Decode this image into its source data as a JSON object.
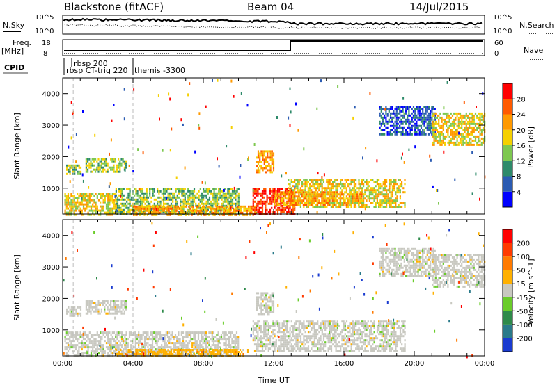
{
  "header": {
    "station": "Blackstone (fitACF)",
    "beam": "Beam 04",
    "date": "14/Jul/2015"
  },
  "strip": {
    "nsky_label": "N.Sky",
    "nsearch_label": "N.Search",
    "noise_ticks_left": [
      "10^5",
      "10^0"
    ],
    "noise_ticks_right": [
      "10^5",
      "10^0"
    ],
    "freq_label": "Freq.",
    "freq_unit": "[MHz]",
    "freq_ticks": [
      "18",
      "8"
    ],
    "nave_label": "Nave",
    "nave_ticks": [
      "60",
      "0"
    ],
    "cpid_label": "CPID",
    "cpid_entries": [
      {
        "text": "rbsp 200",
        "hour": 0.6
      },
      {
        "text": "rbsp CT-trig 220",
        "hour": 0.05
      },
      {
        "text": "themis -3300",
        "hour": 4.0
      }
    ]
  },
  "chart_data": [
    {
      "type": "heatmap",
      "name": "power-panel",
      "ylabel": "Slant Range [km]",
      "xlabel": "",
      "xlim": [
        0,
        24
      ],
      "ylim": [
        180,
        4500
      ],
      "yticks": [
        1000,
        2000,
        3000,
        4000
      ],
      "colorbar": {
        "label": "Power [dB]",
        "ticks": [
          "4",
          "8",
          "12",
          "16",
          "20",
          "24",
          "28"
        ],
        "colors": [
          "#0000ff",
          "#2b5bb2",
          "#2e8a6a",
          "#7ec850",
          "#f5d000",
          "#ff9900",
          "#ff5a00",
          "#ff0000"
        ]
      },
      "regions": [
        {
          "h0": 0.2,
          "h1": 1.0,
          "r0": 1450,
          "r1": 1750,
          "level": 3
        },
        {
          "h0": 1.3,
          "h1": 3.6,
          "r0": 1500,
          "r1": 1950,
          "level": 3
        },
        {
          "h0": 0.1,
          "h1": 3.0,
          "r0": 180,
          "r1": 850,
          "level": 4
        },
        {
          "h0": 3.0,
          "h1": 10.0,
          "r0": 180,
          "r1": 1000,
          "level": 3
        },
        {
          "h0": 4.0,
          "h1": 11.0,
          "r0": 180,
          "r1": 450,
          "level": 5
        },
        {
          "h0": 11.0,
          "h1": 12.0,
          "r0": 1500,
          "r1": 2200,
          "level": 5
        },
        {
          "h0": 10.8,
          "h1": 13.2,
          "r0": 180,
          "r1": 1000,
          "level": 7
        },
        {
          "h0": 12.8,
          "h1": 19.5,
          "r0": 400,
          "r1": 1300,
          "level": 4
        },
        {
          "h0": 12.0,
          "h1": 17.0,
          "r0": 450,
          "r1": 900,
          "level": 5
        },
        {
          "h0": 18.0,
          "h1": 21.2,
          "r0": 2700,
          "r1": 3600,
          "level": 1
        },
        {
          "h0": 21.0,
          "h1": 24.0,
          "r0": 2400,
          "r1": 3400,
          "level": 4
        }
      ]
    },
    {
      "type": "heatmap",
      "name": "velocity-panel",
      "ylabel": "Slant Range [km]",
      "xlabel": "Time UT",
      "xlim": [
        0,
        24
      ],
      "ylim": [
        180,
        4500
      ],
      "xticks": [
        "00:00",
        "04:00",
        "08:00",
        "12:00",
        "16:00",
        "20:00",
        "00:00"
      ],
      "yticks": [
        1000,
        2000,
        3000,
        4000
      ],
      "colorbar": {
        "label": "Velocity [m s^-1]",
        "ticks": [
          "200",
          "100",
          "50",
          "15",
          "-15",
          "-50",
          "-100",
          "-200"
        ],
        "colors": [
          "#1a3bd0",
          "#2a7a8a",
          "#2e8a4a",
          "#6acc2a",
          "#c8c8c0",
          "#ffb000",
          "#ff7a00",
          "#ff3a00",
          "#ff0000"
        ]
      },
      "regions": [
        {
          "h0": 0.2,
          "h1": 1.0,
          "r0": 1450,
          "r1": 1750,
          "level": 4
        },
        {
          "h0": 1.3,
          "h1": 3.6,
          "r0": 1500,
          "r1": 1950,
          "level": 4
        },
        {
          "h0": 0.1,
          "h1": 10.0,
          "r0": 180,
          "r1": 950,
          "level": 4
        },
        {
          "h0": 3.0,
          "h1": 10.5,
          "r0": 180,
          "r1": 400,
          "level": 5
        },
        {
          "h0": 11.0,
          "h1": 12.0,
          "r0": 1500,
          "r1": 2200,
          "level": 4
        },
        {
          "h0": 10.8,
          "h1": 19.5,
          "r0": 350,
          "r1": 1300,
          "level": 4
        },
        {
          "h0": 18.0,
          "h1": 21.2,
          "r0": 2700,
          "r1": 3600,
          "level": 4
        },
        {
          "h0": 21.0,
          "h1": 24.0,
          "r0": 2400,
          "r1": 3400,
          "level": 4
        }
      ]
    }
  ]
}
